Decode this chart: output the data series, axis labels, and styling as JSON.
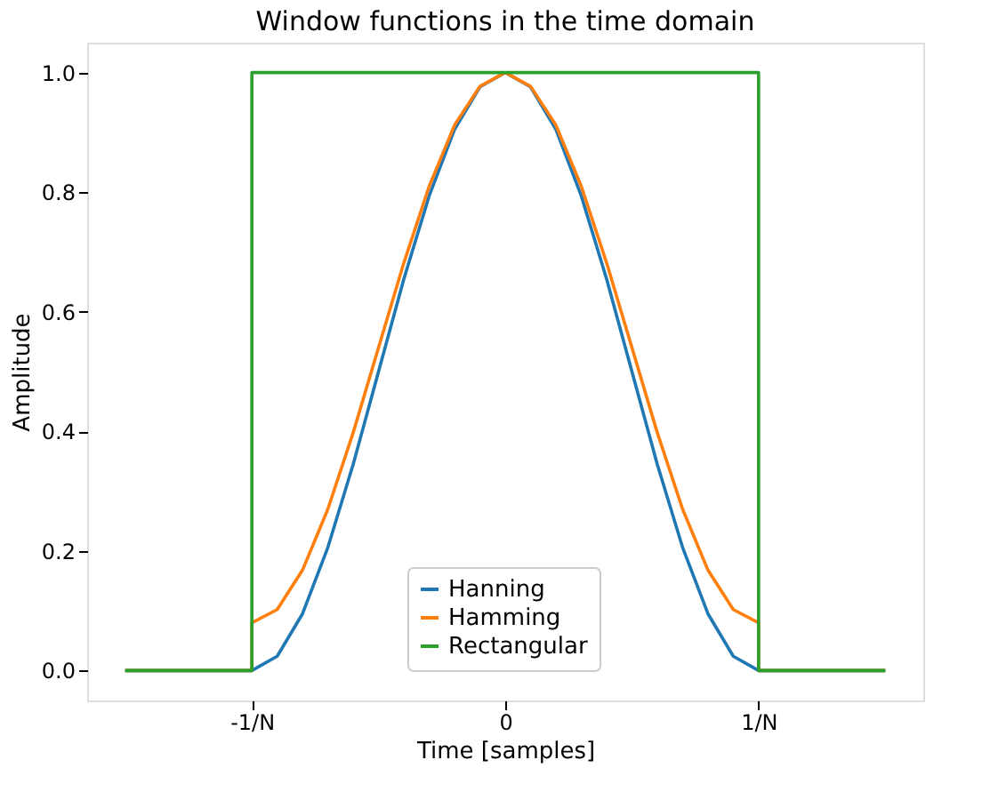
{
  "chart_data": {
    "type": "line",
    "title": "Window functions in the time domain",
    "xlabel": "Time [samples]",
    "ylabel": "Amplitude",
    "xlim": [
      -1.65,
      1.65
    ],
    "ylim": [
      -0.05,
      1.05
    ],
    "xticks": [
      {
        "value": -1,
        "label": "-1/N"
      },
      0,
      {
        "value": 1,
        "label": "1/N"
      }
    ],
    "yticks": [
      {
        "value": 0,
        "label": "0.0"
      },
      {
        "value": 0.2,
        "label": "0.2"
      },
      {
        "value": 0.4,
        "label": "0.4"
      },
      {
        "value": 0.6,
        "label": "0.6"
      },
      {
        "value": 0.8,
        "label": "0.8"
      },
      {
        "value": 1,
        "label": "1.0"
      }
    ],
    "grid": false,
    "legend": "bottom",
    "line_style": "solid",
    "series": [
      {
        "name": "Hanning",
        "color": "#1f77b4",
        "x": [
          -1.5,
          -1,
          -0.9,
          -0.8,
          -0.7,
          -0.6,
          -0.5,
          -0.4,
          -0.3,
          -0.2,
          -0.1,
          0,
          0.1,
          0.2,
          0.3,
          0.4,
          0.5,
          0.6,
          0.7,
          0.8,
          0.9,
          1,
          1.5
        ],
        "values": [
          0,
          0,
          0.024,
          0.095,
          0.206,
          0.345,
          0.5,
          0.655,
          0.794,
          0.905,
          0.976,
          1,
          0.976,
          0.905,
          0.794,
          0.655,
          0.5,
          0.345,
          0.206,
          0.095,
          0.024,
          0,
          0
        ]
      },
      {
        "name": "Hamming",
        "color": "#ff7f0e",
        "x": [
          -1.5,
          -1,
          -1,
          -0.9,
          -0.8,
          -0.7,
          -0.6,
          -0.5,
          -0.4,
          -0.3,
          -0.2,
          -0.1,
          0,
          0.1,
          0.2,
          0.3,
          0.4,
          0.5,
          0.6,
          0.7,
          0.8,
          0.9,
          1,
          1,
          1.5
        ],
        "values": [
          0,
          0,
          0.08,
          0.102,
          0.168,
          0.27,
          0.398,
          0.54,
          0.682,
          0.81,
          0.912,
          0.977,
          1,
          0.977,
          0.912,
          0.81,
          0.682,
          0.54,
          0.398,
          0.27,
          0.168,
          0.102,
          0.08,
          0,
          0
        ]
      },
      {
        "name": "Rectangular",
        "color": "#2ca02c",
        "x": [
          -1.5,
          -1,
          -1,
          1,
          1,
          1.5
        ],
        "values": [
          0,
          0,
          1,
          1,
          0,
          0
        ]
      }
    ]
  }
}
